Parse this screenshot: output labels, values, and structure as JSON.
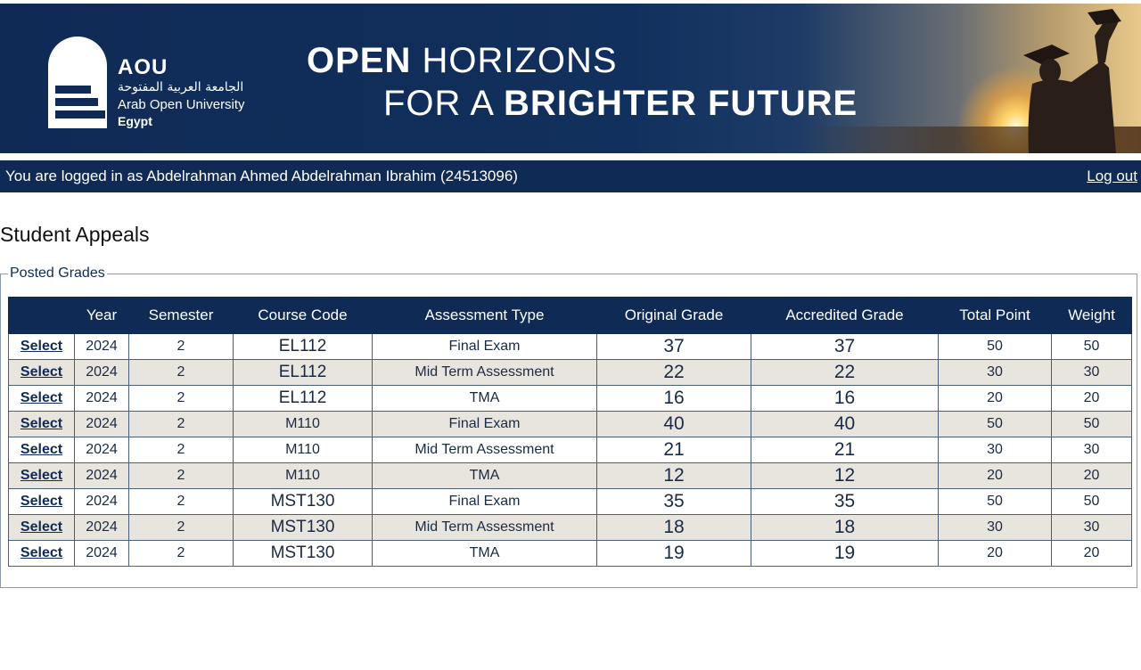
{
  "banner": {
    "brand_short": "AOU",
    "brand_arabic": "الجامعة العربية المفتوحة",
    "brand_english": "Arab Open University",
    "brand_country": "Egypt",
    "slogan_line1_bold": "OPEN",
    "slogan_line1_rest": " HORIZONS",
    "slogan_line2_rest": "FOR A ",
    "slogan_line2_bold": "BRIGHTER FUTURE"
  },
  "session": {
    "logged_in_text": "You are logged in as Abdelrahman Ahmed Abdelrahman Ibrahim (24513096)",
    "logout_label": "Log out"
  },
  "page": {
    "title": "Student Appeals",
    "section_legend": "Posted Grades"
  },
  "table": {
    "headers": [
      "",
      "Year",
      "Semester",
      "Course Code",
      "Assessment Type",
      "Original Grade",
      "Accredited Grade",
      "Total Point",
      "Weight"
    ],
    "select_label": "Select",
    "rows": [
      {
        "year": "2024",
        "semester": "2",
        "course": "EL112",
        "type": "Final Exam",
        "original": "37",
        "accredited": "37",
        "total": "50",
        "weight": "50"
      },
      {
        "year": "2024",
        "semester": "2",
        "course": "EL112",
        "type": "Mid Term Assessment",
        "original": "22",
        "accredited": "22",
        "total": "30",
        "weight": "30"
      },
      {
        "year": "2024",
        "semester": "2",
        "course": "EL112",
        "type": "TMA",
        "original": "16",
        "accredited": "16",
        "total": "20",
        "weight": "20"
      },
      {
        "year": "2024",
        "semester": "2",
        "course": "M110",
        "type": "Final Exam",
        "original": "40",
        "accredited": "40",
        "total": "50",
        "weight": "50"
      },
      {
        "year": "2024",
        "semester": "2",
        "course": "M110",
        "type": "Mid Term Assessment",
        "original": "21",
        "accredited": "21",
        "total": "30",
        "weight": "30"
      },
      {
        "year": "2024",
        "semester": "2",
        "course": "M110",
        "type": "TMA",
        "original": "12",
        "accredited": "12",
        "total": "20",
        "weight": "20"
      },
      {
        "year": "2024",
        "semester": "2",
        "course": "MST130",
        "type": "Final Exam",
        "original": "35",
        "accredited": "35",
        "total": "50",
        "weight": "50"
      },
      {
        "year": "2024",
        "semester": "2",
        "course": "MST130",
        "type": "Mid Term Assessment",
        "original": "18",
        "accredited": "18",
        "total": "30",
        "weight": "30"
      },
      {
        "year": "2024",
        "semester": "2",
        "course": "MST130",
        "type": "TMA",
        "original": "19",
        "accredited": "19",
        "total": "20",
        "weight": "20"
      }
    ]
  },
  "colors": {
    "brand_navy": "#0f2a55",
    "row_alt": "#e8e5df"
  }
}
